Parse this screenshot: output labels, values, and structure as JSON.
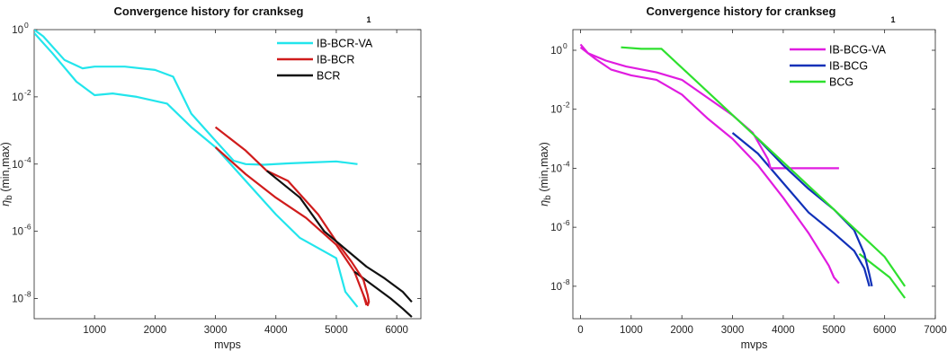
{
  "chart_data": [
    {
      "type": "line",
      "title": "Convergence history for crankseg",
      "title_superscript": "1",
      "xlabel": "mvps",
      "ylabel_symbol": "η",
      "ylabel_subscript": "b",
      "ylabel_suffix": " (min,max)",
      "xlim": [
        0,
        6400
      ],
      "xticks": [
        1000,
        2000,
        3000,
        4000,
        5000,
        6000
      ],
      "ylim_log10": [
        -8.6,
        0
      ],
      "yticks_log10": [
        0,
        -2,
        -4,
        -6,
        -8
      ],
      "y_scale": "log",
      "legend_position": "top-right",
      "grid": false,
      "series": [
        {
          "name": "IB-BCR-VA",
          "color": "#22e5ec",
          "points": [
            [
              0,
              0
            ],
            [
              150,
              -0.2
            ],
            [
              500,
              -0.9
            ],
            [
              800,
              -1.15
            ],
            [
              1000,
              -1.1
            ],
            [
              1500,
              -1.1
            ],
            [
              2000,
              -1.2
            ],
            [
              2300,
              -1.4
            ],
            [
              2600,
              -2.5
            ],
            [
              2900,
              -3.1
            ],
            [
              3300,
              -3.9
            ],
            [
              3500,
              -4.0
            ],
            [
              3800,
              -4.02
            ],
            [
              4200,
              -3.98
            ],
            [
              4600,
              -3.95
            ],
            [
              5000,
              -3.92
            ],
            [
              5350,
              -4.0
            ]
          ]
        },
        {
          "name": "IB-BCR",
          "color": "#d01c1c",
          "points": [
            [
              3000,
              -2.9
            ],
            [
              3500,
              -3.6
            ],
            [
              3850,
              -4.2
            ],
            [
              4200,
              -4.5
            ],
            [
              4700,
              -5.5
            ],
            [
              5000,
              -6.3
            ],
            [
              5250,
              -6.9
            ],
            [
              5450,
              -7.45
            ],
            [
              5520,
              -7.9
            ],
            [
              5540,
              -8.1
            ],
            [
              5520,
              -8.2
            ],
            [
              5450,
              -7.9
            ]
          ]
        },
        {
          "name": "BCR",
          "color": "#111111",
          "points": [
            [
              3850,
              -4.2
            ],
            [
              4400,
              -5.0
            ],
            [
              4800,
              -6.0
            ],
            [
              5200,
              -6.6
            ],
            [
              5500,
              -7.05
            ],
            [
              5800,
              -7.4
            ],
            [
              6100,
              -7.8
            ],
            [
              6250,
              -8.1
            ]
          ]
        }
      ],
      "extra_series": [
        {
          "color": "#22e5ec",
          "points": [
            [
              0,
              -0.1
            ],
            [
              300,
              -0.7
            ],
            [
              700,
              -1.55
            ],
            [
              1000,
              -1.95
            ],
            [
              1300,
              -1.9
            ],
            [
              1700,
              -2.0
            ],
            [
              2200,
              -2.2
            ],
            [
              2600,
              -2.9
            ],
            [
              3000,
              -3.5
            ],
            [
              3500,
              -4.5
            ],
            [
              4000,
              -5.5
            ],
            [
              4400,
              -6.2
            ],
            [
              4800,
              -6.6
            ],
            [
              5000,
              -6.8
            ],
            [
              5150,
              -7.8
            ],
            [
              5350,
              -8.25
            ]
          ]
        },
        {
          "color": "#d01c1c",
          "points": [
            [
              3000,
              -3.5
            ],
            [
              3500,
              -4.3
            ],
            [
              4000,
              -5.0
            ],
            [
              4500,
              -5.6
            ],
            [
              5000,
              -6.4
            ],
            [
              5300,
              -7.2
            ],
            [
              5450,
              -7.9
            ],
            [
              5500,
              -8.2
            ]
          ]
        },
        {
          "color": "#111111",
          "points": [
            [
              5300,
              -7.2
            ],
            [
              5600,
              -7.6
            ],
            [
              5900,
              -8.0
            ],
            [
              6100,
              -8.3
            ],
            [
              6250,
              -8.55
            ]
          ]
        }
      ]
    },
    {
      "type": "line",
      "title": "Convergence history for crankseg",
      "title_superscript": "1",
      "xlabel": "mvps",
      "ylabel_symbol": "η",
      "ylabel_subscript": "b",
      "ylabel_suffix": " (min,max)",
      "xlim": [
        -150,
        7000
      ],
      "xticks": [
        0,
        1000,
        2000,
        3000,
        4000,
        5000,
        6000,
        7000
      ],
      "ylim_log10": [
        -9.1,
        0.7
      ],
      "yticks_log10": [
        0,
        -2,
        -4,
        -6,
        -8
      ],
      "y_scale": "log",
      "legend_position": "top-right",
      "grid": false,
      "series": [
        {
          "name": "IB-BCG-VA",
          "color": "#e01ce0",
          "points": [
            [
              0,
              0.2
            ],
            [
              150,
              -0.1
            ],
            [
              500,
              -0.35
            ],
            [
              900,
              -0.55
            ],
            [
              1500,
              -0.75
            ],
            [
              2000,
              -1.0
            ],
            [
              2500,
              -1.6
            ],
            [
              3000,
              -2.2
            ],
            [
              3400,
              -2.8
            ],
            [
              3700,
              -3.7
            ],
            [
              3750,
              -4.0
            ],
            [
              4200,
              -4.0
            ],
            [
              5100,
              -4.0
            ]
          ]
        },
        {
          "name": "IB-BCG",
          "color": "#1030b8",
          "points": [
            [
              3500,
              -3.0
            ],
            [
              4000,
              -3.9
            ],
            [
              4500,
              -4.7
            ],
            [
              5000,
              -5.4
            ],
            [
              5400,
              -6.1
            ],
            [
              5600,
              -6.9
            ],
            [
              5700,
              -7.6
            ],
            [
              5750,
              -8.0
            ]
          ]
        },
        {
          "name": "BCG",
          "color": "#2ee02e",
          "points": [
            [
              800,
              0.1
            ],
            [
              1200,
              0.05
            ],
            [
              1600,
              0.05
            ],
            [
              5500,
              -6.2
            ],
            [
              6000,
              -7.0
            ],
            [
              6400,
              -8.0
            ]
          ]
        }
      ],
      "extra_series": [
        {
          "color": "#e01ce0",
          "points": [
            [
              0,
              0.1
            ],
            [
              300,
              -0.3
            ],
            [
              600,
              -0.65
            ],
            [
              1000,
              -0.85
            ],
            [
              1500,
              -1.0
            ],
            [
              2000,
              -1.5
            ],
            [
              2500,
              -2.3
            ],
            [
              3000,
              -3.0
            ],
            [
              3500,
              -3.9
            ],
            [
              4000,
              -5.0
            ],
            [
              4500,
              -6.2
            ],
            [
              4900,
              -7.3
            ],
            [
              5000,
              -7.7
            ],
            [
              5100,
              -7.9
            ]
          ]
        },
        {
          "color": "#1030b8",
          "points": [
            [
              3000,
              -2.8
            ],
            [
              3500,
              -3.5
            ],
            [
              4000,
              -4.5
            ],
            [
              4500,
              -5.5
            ],
            [
              5000,
              -6.2
            ],
            [
              5400,
              -6.8
            ],
            [
              5600,
              -7.4
            ],
            [
              5700,
              -8.0
            ]
          ]
        },
        {
          "color": "#2ee02e",
          "points": [
            [
              5500,
              -6.9
            ],
            [
              5800,
              -7.3
            ],
            [
              6100,
              -7.7
            ],
            [
              6400,
              -8.4
            ]
          ]
        }
      ]
    }
  ]
}
